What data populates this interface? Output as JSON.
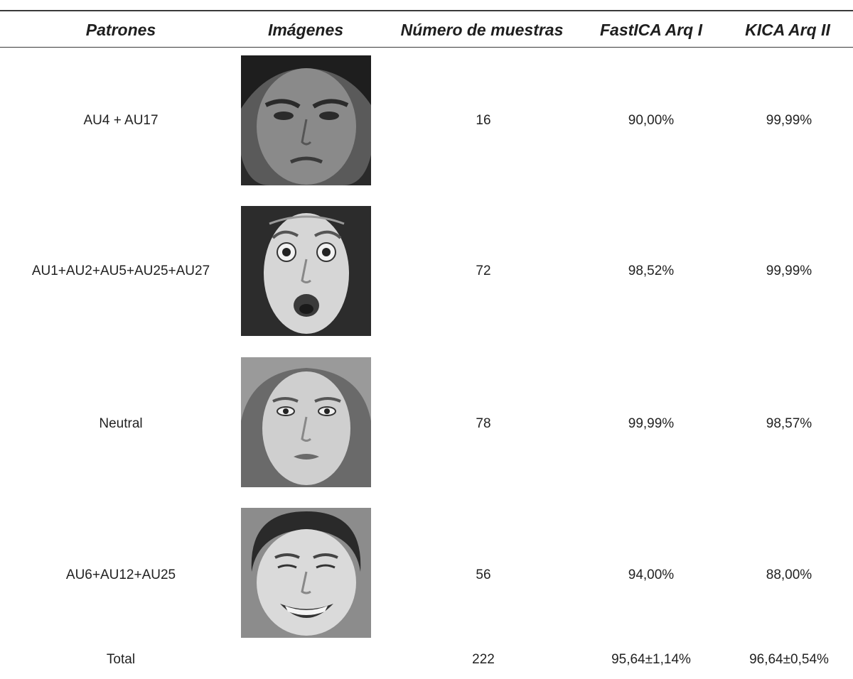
{
  "table": {
    "headers": [
      "Patrones",
      "Imágenes",
      "Número de muestras",
      "FastICA Arq I",
      "KICA Arq II"
    ],
    "rows": [
      {
        "pattern": "AU4 + AU17",
        "image": "face-frown-icon",
        "samples": "16",
        "fastica": "90,00%",
        "kica": "99,99%"
      },
      {
        "pattern": "AU1+AU2+AU5+AU25+AU27",
        "image": "face-surprise-icon",
        "samples": "72",
        "fastica": "98,52%",
        "kica": "99,99%"
      },
      {
        "pattern": "Neutral",
        "image": "face-neutral-icon",
        "samples": "78",
        "fastica": "99,99%",
        "kica": "98,57%"
      },
      {
        "pattern": "AU6+AU12+AU25",
        "image": "face-smile-icon",
        "samples": "56",
        "fastica": "94,00%",
        "kica": "88,00%"
      }
    ],
    "total": {
      "pattern": "Total",
      "samples": "222",
      "fastica": "95,64±1,14%",
      "kica": "96,64±0,54%"
    }
  }
}
